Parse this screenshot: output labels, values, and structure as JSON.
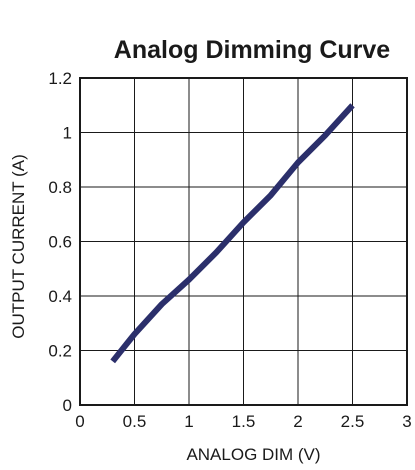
{
  "chart_data": {
    "type": "line",
    "title": "Analog Dimming Curve",
    "xlabel": "ANALOG DIM (V)",
    "ylabel": "OUTPUT CURRENT (A)",
    "xlim": [
      0,
      3
    ],
    "ylim": [
      0,
      1.2
    ],
    "x_ticks": [
      0,
      0.5,
      1,
      1.5,
      2,
      2.5,
      3
    ],
    "x_tick_labels": [
      "0",
      "0.5",
      "1",
      "1.5",
      "2",
      "2.5",
      "3"
    ],
    "y_ticks": [
      0,
      0.2,
      0.4,
      0.6,
      0.8,
      1,
      1.2
    ],
    "y_tick_labels": [
      "0",
      "0.2",
      "0.4",
      "0.6",
      "0.8",
      "1",
      "1.2"
    ],
    "grid": true,
    "series": [
      {
        "color": "#2b2f6b",
        "x": [
          0.3,
          0.5,
          0.75,
          1.0,
          1.25,
          1.5,
          1.75,
          2.0,
          2.25,
          2.5
        ],
        "y": [
          0.16,
          0.26,
          0.37,
          0.46,
          0.56,
          0.67,
          0.77,
          0.89,
          0.99,
          1.1
        ]
      }
    ]
  }
}
